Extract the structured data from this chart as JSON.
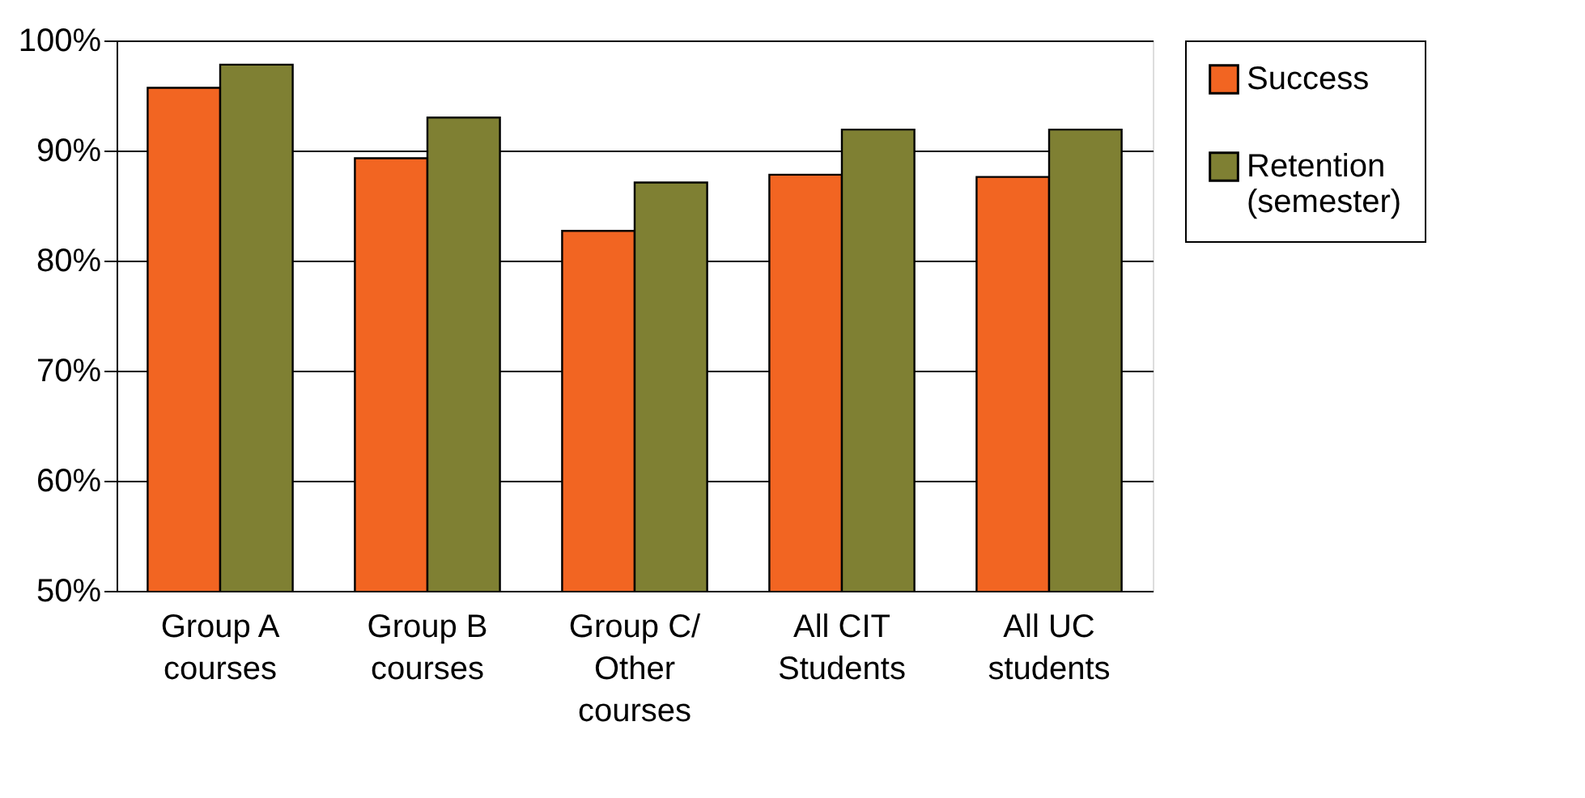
{
  "chart_data": {
    "type": "bar",
    "categories": [
      "Group A courses",
      "Group B courses",
      "Group C/ Other courses",
      "All CIT Students",
      "All UC students"
    ],
    "series": [
      {
        "name": "Success",
        "color": "#f26522",
        "values": [
          95.7,
          89.3,
          82.7,
          87.8,
          87.6
        ]
      },
      {
        "name": "Retention (semester)",
        "color": "#7f8033",
        "values": [
          97.8,
          93.0,
          87.1,
          91.9,
          91.9
        ]
      }
    ],
    "ylim": [
      50,
      100
    ],
    "yticks": [
      {
        "value": 50,
        "label": "50%"
      },
      {
        "value": 60,
        "label": "60%"
      },
      {
        "value": 70,
        "label": "70%"
      },
      {
        "value": 80,
        "label": "80%"
      },
      {
        "value": 90,
        "label": "90%"
      },
      {
        "value": 100,
        "label": "100%"
      }
    ],
    "grid": "y",
    "legend": "right"
  }
}
